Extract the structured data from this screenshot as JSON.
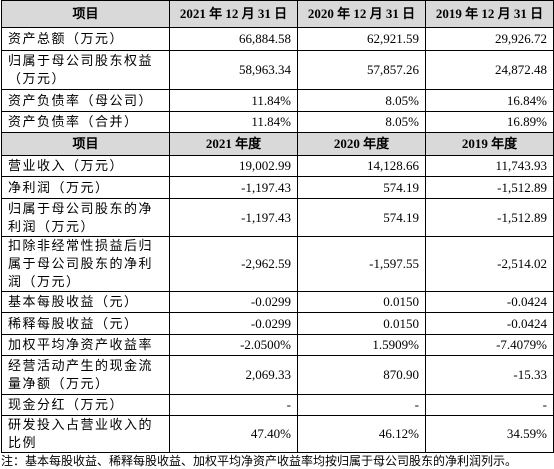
{
  "table": {
    "header1": [
      "项目",
      "2021 年 12 月 31 日",
      "2020 年 12 月 31 日",
      "2019 年 12 月 31 日"
    ],
    "rows1": [
      [
        "资产总额（万元）",
        "66,884.58",
        "62,921.59",
        "29,926.72"
      ],
      [
        "归属于母公司股东权益（万元）",
        "58,963.34",
        "57,857.26",
        "24,872.48"
      ],
      [
        "资产负债率（母公司）",
        "11.84%",
        "8.05%",
        "16.84%"
      ],
      [
        "资产负债率（合并）",
        "11.84%",
        "8.05%",
        "16.89%"
      ]
    ],
    "header2": [
      "项目",
      "2021 年度",
      "2020 年度",
      "2019 年度"
    ],
    "rows2": [
      [
        "营业收入（万元）",
        "19,002.99",
        "14,128.66",
        "11,743.93"
      ],
      [
        "净利润（万元）",
        "-1,197.43",
        "574.19",
        "-1,512.89"
      ],
      [
        "归属于母公司股东的净利润（万元）",
        "-1,197.43",
        "574.19",
        "-1,512.89"
      ],
      [
        "扣除非经常性损益后归属于母公司股东的净利润（万元）",
        "-2,962.59",
        "-1,597.55",
        "-2,514.02"
      ],
      [
        "基本每股收益（元）",
        "-0.0299",
        "0.0150",
        "-0.0424"
      ],
      [
        "稀释每股收益（元）",
        "-0.0299",
        "0.0150",
        "-0.0424"
      ],
      [
        "加权平均净资产收益率",
        "-2.0500%",
        "1.5909%",
        "-7.4079%"
      ],
      [
        "经营活动产生的现金流量净额（万元）",
        "2,069.33",
        "870.90",
        "-15.33"
      ],
      [
        "现金分红（万元）",
        "-",
        "-",
        "-"
      ],
      [
        "研发投入占营业收入的比例",
        "47.40%",
        "46.12%",
        "34.59%"
      ]
    ],
    "note": "注：基本每股收益、稀释每股收益、加权平均净资产收益率均按归属于母公司股东的净利润列示。"
  }
}
